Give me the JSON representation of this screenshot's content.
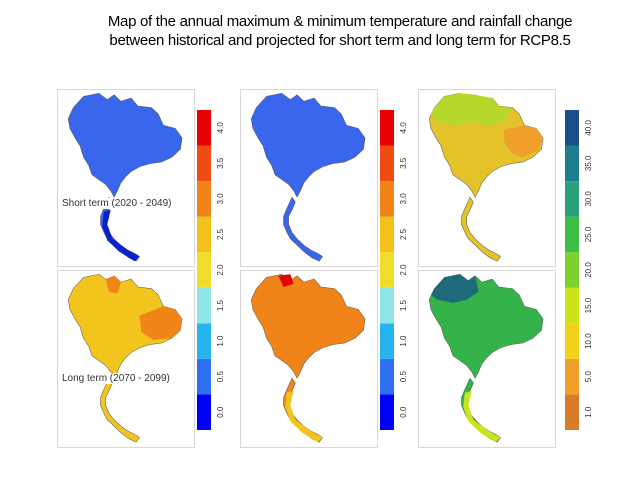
{
  "title": {
    "line1": "Map of the annual maximum & minimum temperature  and rainfall change",
    "line2": "between historical and projected for short term and long term for RCP8.5"
  },
  "periods": {
    "short": "Short term (2020 - 2049)",
    "long": "Long term (2070 - 2099)"
  },
  "temperature_legend": {
    "ticks": [
      "0.0",
      "0.5",
      "1.0",
      "1.5",
      "2.0",
      "2.5",
      "3.0",
      "3.5",
      "4.0"
    ],
    "colors": [
      "#0000f5",
      "#2f6ff2",
      "#25b4ee",
      "#8fe6e6",
      "#f0dc2a",
      "#f3c21a",
      "#f08418",
      "#ef4c14",
      "#e60000"
    ]
  },
  "rainfall_legend": {
    "ticks": [
      "1.0",
      "5.0",
      "10.0",
      "15.0",
      "20.0",
      "25.0",
      "30.0",
      "35.0",
      "40.0"
    ],
    "colors": [
      "#d97a2a",
      "#eea02a",
      "#f3d21a",
      "#c9e41a",
      "#7bd12e",
      "#3dbd44",
      "#2aa07a",
      "#1e7d8e",
      "#1a4e8c"
    ]
  },
  "maps": [
    {
      "id": "short-max",
      "fill": "#3a66ee",
      "accent": "#0a22c8"
    },
    {
      "id": "short-min",
      "fill": "#3a66ee",
      "accent": "#3a66ee"
    },
    {
      "id": "short-rain",
      "fill": "#e3c22a",
      "accent": "#b5d82a"
    },
    {
      "id": "long-max",
      "fill": "#f1c51e",
      "accent": "#f08418"
    },
    {
      "id": "long-min",
      "fill": "#f08418",
      "accent": "#e60000"
    },
    {
      "id": "long-rain",
      "fill": "#33b34a",
      "accent": "#1e6a78"
    }
  ]
}
